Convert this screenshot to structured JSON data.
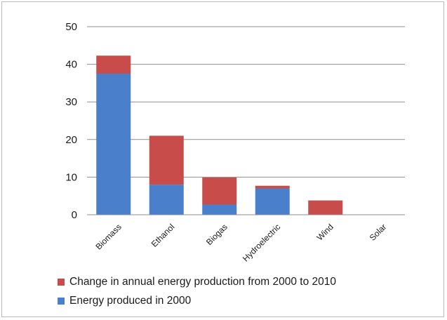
{
  "chart_data": {
    "type": "bar",
    "stacked": true,
    "categories": [
      "Biomass",
      "Ethanol",
      "Biogas",
      "Hydroelectric",
      "Wind",
      "Solar"
    ],
    "series": [
      {
        "name": "Energy produced in 2000",
        "color": "#4a7fcb",
        "values": [
          37.5,
          8,
          2.7,
          7,
          0,
          0
        ]
      },
      {
        "name": "Change in annual energy production from 2000 to 2010",
        "color": "#c84c4a",
        "values": [
          4.8,
          13,
          7.2,
          0.7,
          3.8,
          0
        ]
      }
    ],
    "ylim": [
      0,
      50
    ],
    "yticks": [
      "0",
      "10",
      "20",
      "30",
      "40",
      "50"
    ],
    "grid": true,
    "legend_position": "bottom",
    "xlabel": "",
    "ylabel": "",
    "title": ""
  },
  "legend": {
    "items": [
      {
        "label": "Change in annual energy production from 2000 to 2010",
        "color": "#c84c4a"
      },
      {
        "label": "Energy produced in 2000",
        "color": "#4a7fcb"
      }
    ]
  }
}
